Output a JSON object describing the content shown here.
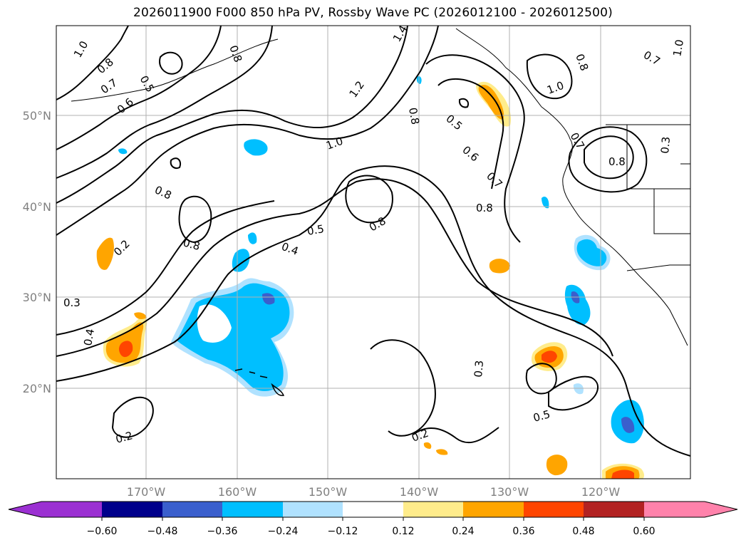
{
  "title": "2026011900 F000 850 hPa PV, Rossby Wave PC (2026012100 - 2026012500)",
  "axes": {
    "lat_labels": [
      "50°N",
      "40°N",
      "30°N",
      "20°N"
    ],
    "lon_labels": [
      "170°W",
      "160°W",
      "150°W",
      "140°W",
      "130°W",
      "120°W"
    ]
  },
  "colorbar": {
    "tick_labels": [
      "−0.60",
      "−0.48",
      "−0.36",
      "−0.24",
      "−0.12",
      "0.12",
      "0.24",
      "0.36",
      "0.48",
      "0.60"
    ],
    "colors": [
      "#9b30d2",
      "#00008b",
      "#3a5fcd",
      "#00bfff",
      "#b0e2ff",
      "#ffffff",
      "#ffec8b",
      "#ffa500",
      "#ff4500",
      "#b22222",
      "#ff82ab"
    ]
  },
  "contour_labels": [
    "1.0",
    "0.8",
    "0.7",
    "0.6",
    "0.5",
    "1.4",
    "1.2",
    "0.8",
    "0.5",
    "0.6",
    "0.7",
    "0.8",
    "1.0",
    "0.7",
    "1.0",
    "0.8",
    "0.3",
    "0.7",
    "0.8",
    "1.0",
    "0.8",
    "0.8",
    "0.5",
    "0.8",
    "0.4",
    "0.2",
    "0.3",
    "0.4",
    "0.3",
    "0.2",
    "0.5",
    "0.2",
    "0.8"
  ]
}
